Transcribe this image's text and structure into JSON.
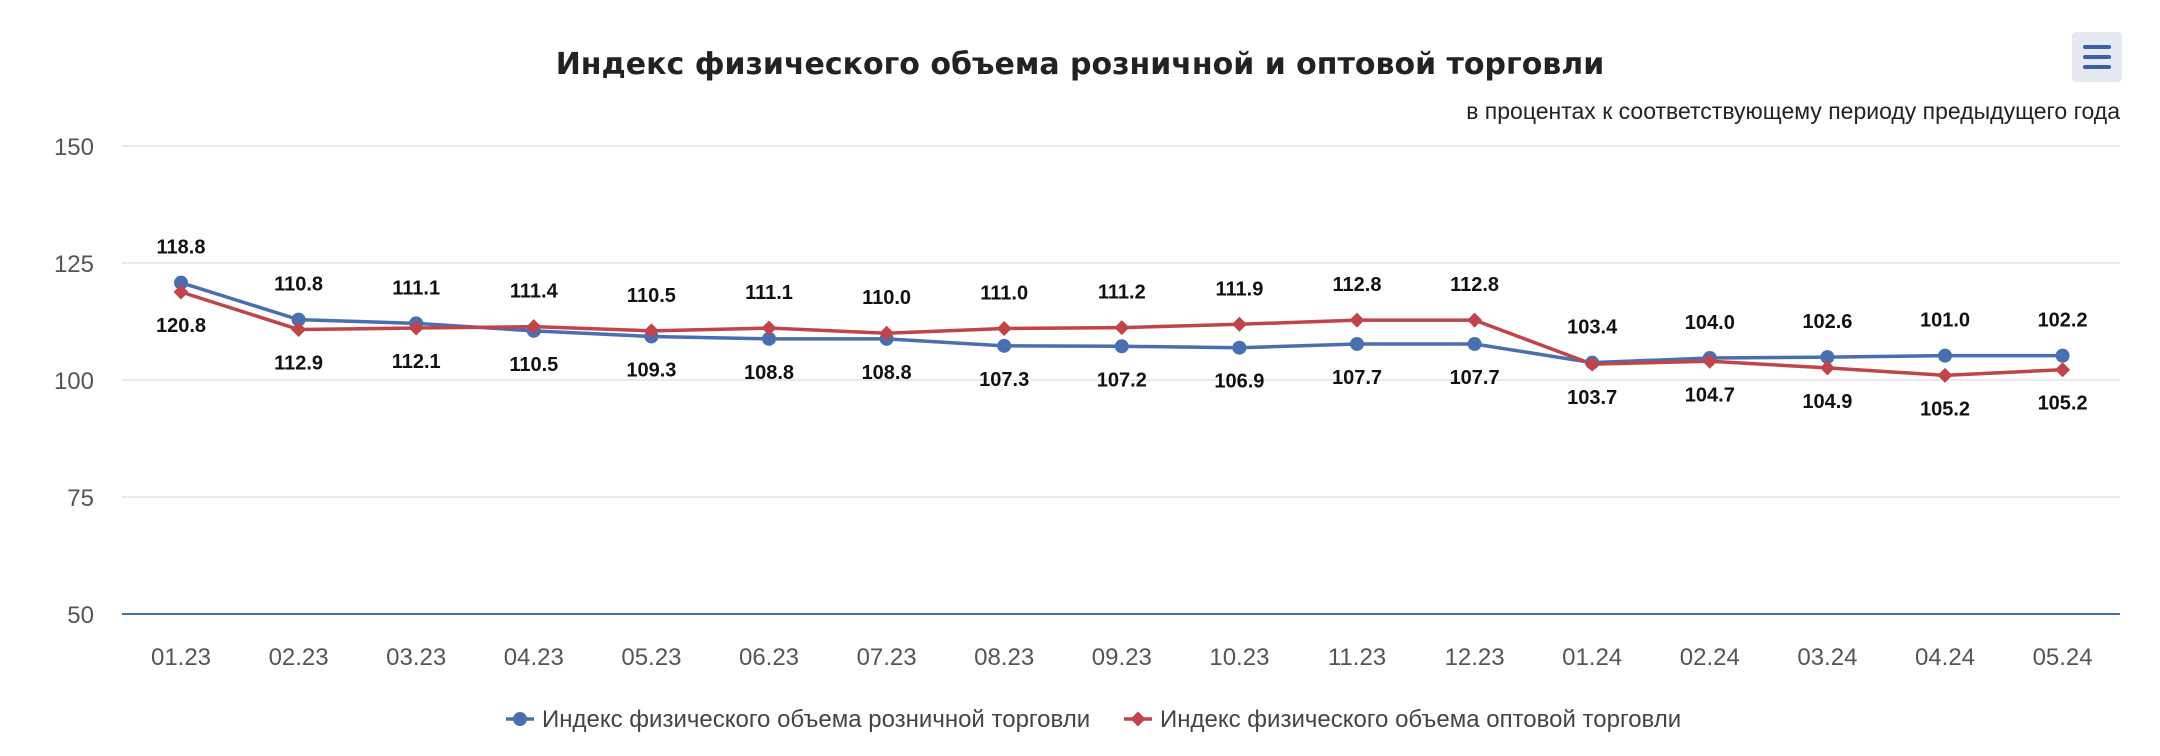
{
  "chart_data": {
    "type": "line",
    "title": "Индекс физического объема розничной и оптовой торговли",
    "subtitle": "в процентах к соответствующему периоду предыдущего года",
    "categories": [
      "01.23",
      "02.23",
      "03.23",
      "04.23",
      "05.23",
      "06.23",
      "07.23",
      "08.23",
      "09.23",
      "10.23",
      "11.23",
      "12.23",
      "01.24",
      "02.24",
      "03.24",
      "04.24",
      "05.24"
    ],
    "y_ticks": [
      150,
      125,
      100,
      75,
      50
    ],
    "ylim": [
      50,
      150
    ],
    "grid": true,
    "legend_position": "bottom",
    "series": [
      {
        "name": "Индекс физического объема розничной торговли",
        "color": "#4a6fb0",
        "marker": "circle",
        "values": [
          120.8,
          112.9,
          112.1,
          110.5,
          109.3,
          108.8,
          108.8,
          107.3,
          107.2,
          106.9,
          107.7,
          107.7,
          103.7,
          104.7,
          104.9,
          105.2,
          105.2
        ],
        "labels": [
          "120.8",
          "112.9",
          "112.1",
          "110.5",
          "109.3",
          "108.8",
          "108.8",
          "107.3",
          "107.2",
          "106.9",
          "107.7",
          "107.7",
          "103.7",
          "104.7",
          "104.9",
          "105.2",
          "105.2"
        ]
      },
      {
        "name": "Индекс физического объема оптовой торговли",
        "color": "#c0444a",
        "marker": "diamond",
        "values": [
          118.8,
          110.8,
          111.1,
          111.4,
          110.5,
          111.1,
          110.0,
          111.0,
          111.2,
          111.9,
          112.8,
          112.8,
          103.4,
          104.0,
          102.6,
          101.0,
          102.2
        ],
        "labels": [
          "118.8",
          "110.8",
          "111.1",
          "111.4",
          "110.5",
          "111.1",
          "110.0",
          "111.0",
          "111.2",
          "111.9",
          "112.8",
          "112.8",
          "103.4",
          "104.0",
          "102.6",
          "101.0",
          "102.2"
        ]
      }
    ]
  },
  "menu": {
    "icon": "hamburger-menu-icon"
  }
}
